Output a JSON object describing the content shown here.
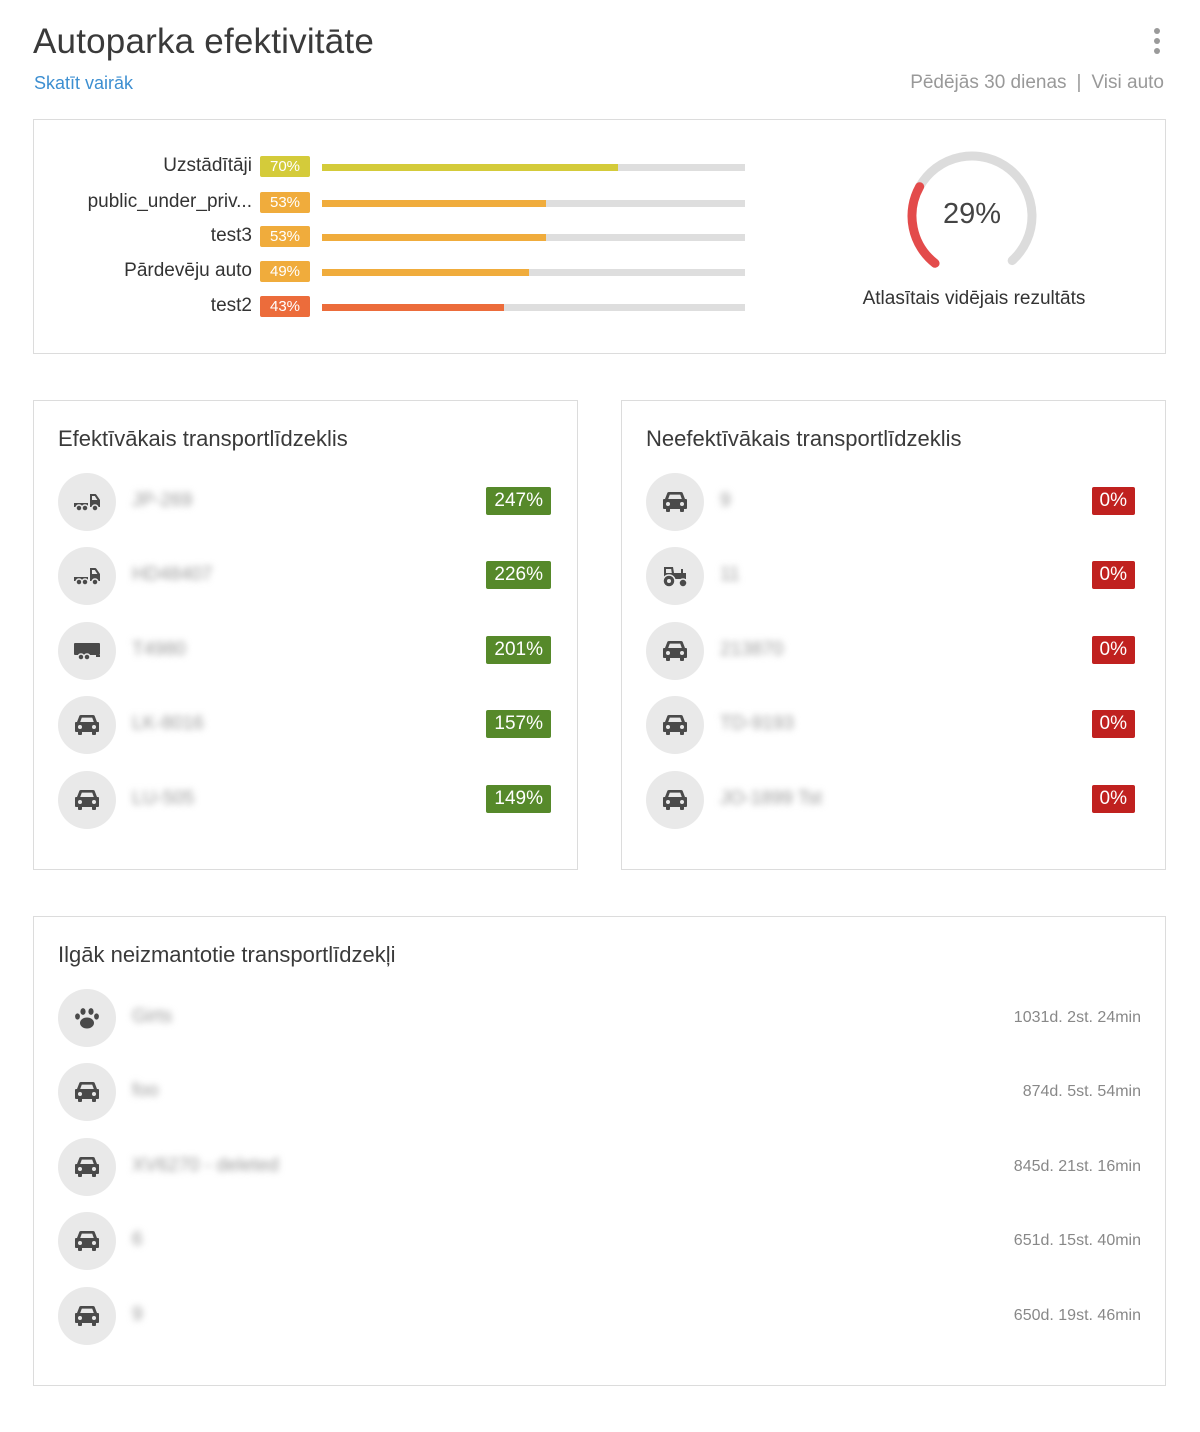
{
  "header": {
    "title": "Autoparka efektivitāte",
    "more_link": "Skatīt vairāk",
    "period_filter": "Pēdējās 30 dienas",
    "separator": "|",
    "vehicle_filter": "Visi auto"
  },
  "overview": {
    "groups": [
      {
        "label": "Uzstādītāji",
        "percent_label": "70%",
        "value": 70,
        "color": "#d4cb3a"
      },
      {
        "label": "public_under_priv...",
        "percent_label": "53%",
        "value": 53,
        "color": "#f0ac3c"
      },
      {
        "label": "test3",
        "percent_label": "53%",
        "value": 53,
        "color": "#f0ac3c"
      },
      {
        "label": "Pārdevēju auto",
        "percent_label": "49%",
        "value": 49,
        "color": "#f0ac3c"
      },
      {
        "label": "test2",
        "percent_label": "43%",
        "value": 43,
        "color": "#ec6c3b"
      }
    ],
    "average": {
      "value_label": "29%",
      "value": 29,
      "caption": "Atlasītais vidējais rezultāts",
      "color": "#e34b4b",
      "track_color": "#dcdcdc"
    }
  },
  "best": {
    "title": "Efektīvākais transportlīdzeklis",
    "items": [
      {
        "icon": "truck-icon",
        "name": "JP-269",
        "percent": "247%"
      },
      {
        "icon": "truck-icon",
        "name": "HD48407",
        "percent": "226%"
      },
      {
        "icon": "trailer-truck-icon",
        "name": "T4980",
        "percent": "201%"
      },
      {
        "icon": "car-icon",
        "name": "LK-8016",
        "percent": "157%"
      },
      {
        "icon": "car-icon",
        "name": "LU-505",
        "percent": "149%"
      }
    ]
  },
  "worst": {
    "title": "Neefektīvākais transportlīdzeklis",
    "items": [
      {
        "icon": "car-icon",
        "name": "9",
        "percent": "0%"
      },
      {
        "icon": "tractor-icon",
        "name": "11",
        "percent": "0%"
      },
      {
        "icon": "car-icon",
        "name": "213870",
        "percent": "0%"
      },
      {
        "icon": "car-icon",
        "name": "TD-9193",
        "percent": "0%"
      },
      {
        "icon": "car-icon",
        "name": "JO-1899 Tst",
        "percent": "0%"
      }
    ]
  },
  "idle": {
    "title": "Ilgāk neizmantotie transportlīdzekļi",
    "items": [
      {
        "icon": "paw-icon",
        "name": "Girts",
        "time": "1031d. 2st. 24min"
      },
      {
        "icon": "car-icon",
        "name": "foo",
        "time": "874d. 5st. 54min"
      },
      {
        "icon": "car-icon",
        "name": "XV6270 - deleted",
        "time": "845d. 21st. 16min"
      },
      {
        "icon": "car-icon",
        "name": "6",
        "time": "651d. 15st. 40min"
      },
      {
        "icon": "car-icon",
        "name": "9",
        "time": "650d. 19st. 46min"
      }
    ]
  }
}
